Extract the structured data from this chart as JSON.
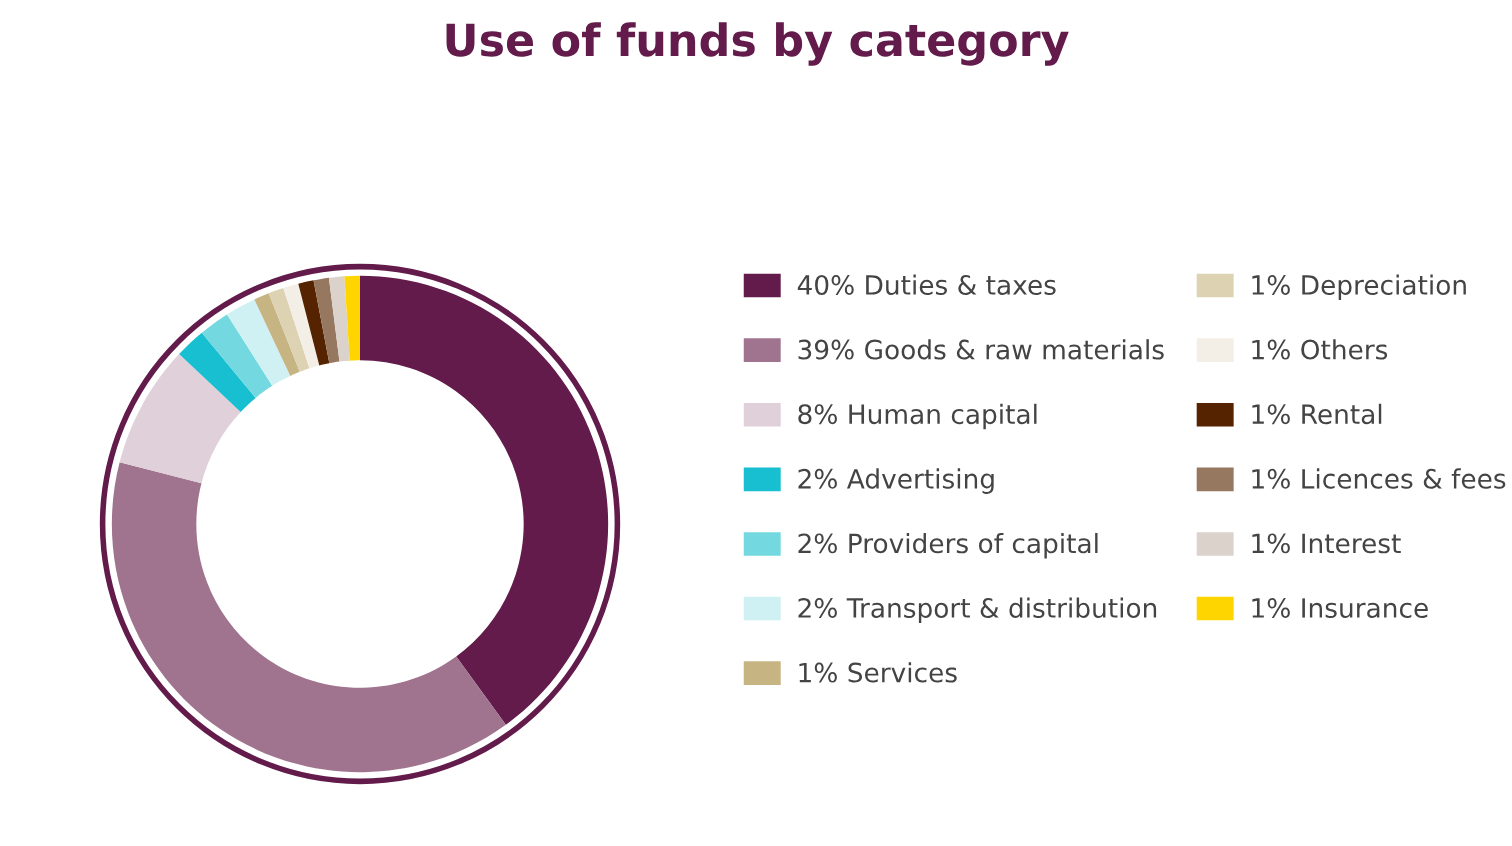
{
  "chart_data": {
    "type": "donut",
    "title": "Use of funds by category",
    "categories": [
      "40% Duties & taxes",
      "39% Goods & raw materials",
      "8% Human capital",
      "2% Advertising",
      "2% Providers of capital",
      "2% Transport & distribution",
      "1% Services",
      "1% Depreciation",
      "1% Others",
      "1% Rental",
      "1% Licences & fees",
      "1% Interest",
      "1% Insurance"
    ],
    "values": [
      40,
      39,
      8,
      2,
      2,
      2,
      1,
      1,
      1,
      1,
      1,
      1,
      1
    ],
    "colors": [
      "#621b4a",
      "#a0748f",
      "#dfd0da",
      "#17bfd0",
      "#74d8e0",
      "#d0f1f3",
      "#c6b482",
      "#ddd2b2",
      "#f3efe7",
      "#552300",
      "#967760",
      "#dbd2cc",
      "#ffd500"
    ],
    "legend": "right"
  }
}
